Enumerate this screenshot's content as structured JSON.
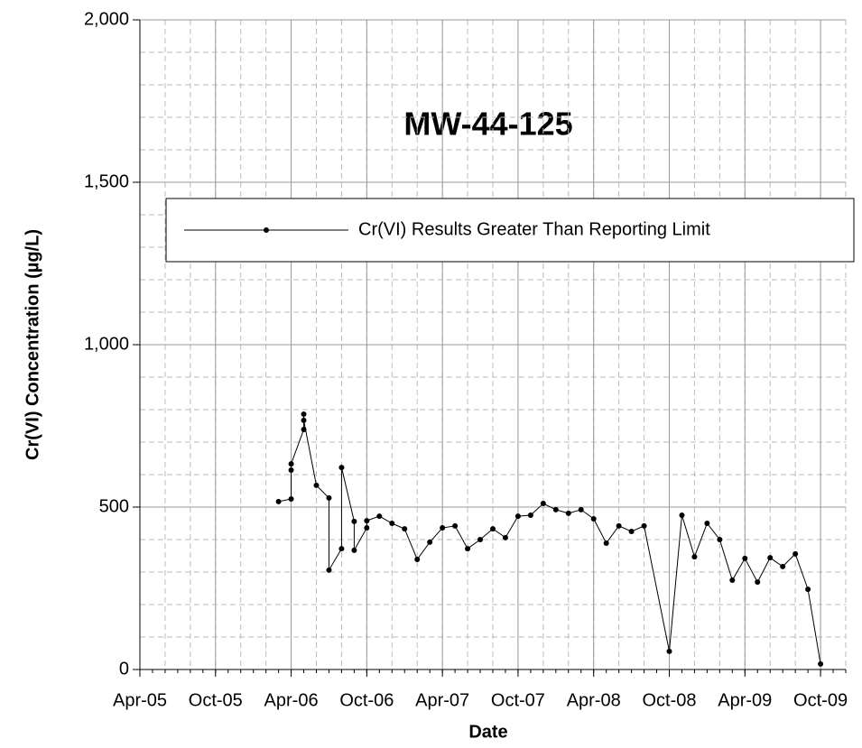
{
  "chart_data": {
    "type": "line",
    "title": "MW-44-125",
    "xlabel": "Date",
    "ylabel": "Cr(VI) Concentration (µg/L)",
    "x": [
      "2006-03",
      "2006-04",
      "2006-04",
      "2006-04",
      "2006-05",
      "2006-05",
      "2006-05",
      "2006-06",
      "2006-07",
      "2006-07",
      "2006-08",
      "2006-08",
      "2006-09",
      "2006-09",
      "2006-10",
      "2006-10",
      "2006-11",
      "2006-12",
      "2007-01",
      "2007-02",
      "2007-03",
      "2007-04",
      "2007-05",
      "2007-06",
      "2007-07",
      "2007-08",
      "2007-09",
      "2007-10",
      "2007-11",
      "2007-12",
      "2008-01",
      "2008-02",
      "2008-03",
      "2008-04",
      "2008-05",
      "2008-06",
      "2008-07",
      "2008-08",
      "2008-10",
      "2008-11",
      "2008-12",
      "2009-01",
      "2009-02",
      "2009-03",
      "2009-04",
      "2009-05",
      "2009-06",
      "2009-07",
      "2009-08",
      "2009-09",
      "2009-10"
    ],
    "series": [
      {
        "name": "Cr(VI) Results Greater Than Reporting Limit",
        "color": "#000000",
        "values": [
          517,
          525,
          614,
          633,
          739,
          786,
          767,
          567,
          528,
          306,
          372,
          622,
          456,
          367,
          436,
          458,
          472,
          450,
          433,
          339,
          392,
          436,
          442,
          372,
          400,
          433,
          406,
          472,
          475,
          511,
          492,
          481,
          492,
          464,
          389,
          442,
          425,
          442,
          56,
          475,
          347,
          450,
          400,
          275,
          342,
          269,
          344,
          317,
          356,
          247,
          17
        ]
      }
    ],
    "xlim": [
      "2005-04",
      "2009-12"
    ],
    "xticks": [
      {
        "value": "2005-04",
        "label": "Apr-05"
      },
      {
        "value": "2005-10",
        "label": "Oct-05"
      },
      {
        "value": "2006-04",
        "label": "Apr-06"
      },
      {
        "value": "2006-10",
        "label": "Oct-06"
      },
      {
        "value": "2007-04",
        "label": "Apr-07"
      },
      {
        "value": "2007-10",
        "label": "Oct-07"
      },
      {
        "value": "2008-04",
        "label": "Apr-08"
      },
      {
        "value": "2008-10",
        "label": "Oct-08"
      },
      {
        "value": "2009-04",
        "label": "Apr-09"
      },
      {
        "value": "2009-10",
        "label": "Oct-09"
      }
    ],
    "ylim": [
      0,
      2000
    ],
    "yticks": [
      0,
      500,
      {
        "value": 1000,
        "label": "1,000"
      },
      {
        "value": 1500,
        "label": "1,500"
      },
      {
        "value": 2000,
        "label": "2,000"
      }
    ],
    "grid": true,
    "legend": "upper center"
  }
}
